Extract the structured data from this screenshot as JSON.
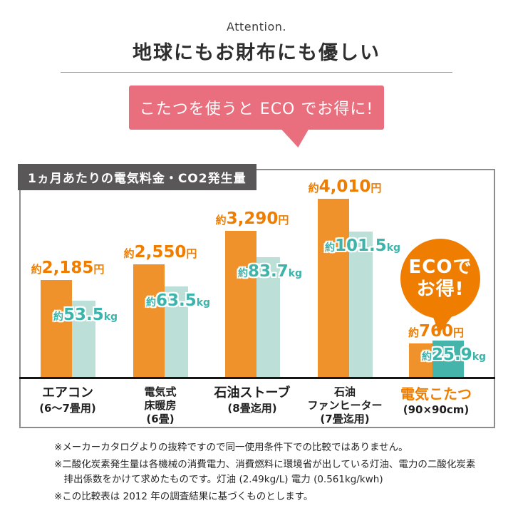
{
  "page": {
    "attention": "Attention.",
    "title": "地球にもお財布にも優しい"
  },
  "bubble": {
    "text": "こたつを使うと ECO でお得に!"
  },
  "chart": {
    "header": "1ヵ月あたりの電気料金・CO2発生量"
  },
  "eco_badge": {
    "line1": "ECOで",
    "line2": "お得!"
  },
  "colors": {
    "price_bar": "#F0922B",
    "co2_bar": "#BCDFD8",
    "co2_bar_highlight": "#45B4AA",
    "price_text": "#EE7D00",
    "co2_text": "#3CB4AA",
    "bubble": "#E96F7E",
    "badge": "#EE7D00",
    "header_box": "#595757",
    "highlight_category": "#EE7D00"
  },
  "chart_data": {
    "type": "bar",
    "title": "1ヵ月あたりの電気料金・CO2発生量",
    "categories": [
      "エアコン(6〜7畳用)",
      "電気式床暖房(6畳)",
      "石油ストーブ(8畳迄用)",
      "石油ファンヒーター(7畳迄用)",
      "電気こたつ(90×90cm)"
    ],
    "series": [
      {
        "name": "電気料金",
        "unit": "円",
        "values": [
          2185,
          2550,
          3290,
          4010,
          760
        ]
      },
      {
        "name": "CO2発生量",
        "unit": "kg",
        "values": [
          53.5,
          63.5,
          83.7,
          101.5,
          25.9
        ]
      }
    ],
    "legend": "none",
    "grid": false,
    "groups": [
      {
        "category_lines": [
          "エアコン",
          "(6〜7畳用)"
        ],
        "price_label": {
          "prefix": "約",
          "num": "2,185",
          "suffix": "円"
        },
        "co2_label": {
          "prefix": "約",
          "num": "53.5",
          "suffix": "kg"
        },
        "highlight": false
      },
      {
        "category_lines": [
          "電気式",
          "床暖房",
          "(6畳)"
        ],
        "price_label": {
          "prefix": "約",
          "num": "2,550",
          "suffix": "円"
        },
        "co2_label": {
          "prefix": "約",
          "num": "63.5",
          "suffix": "kg"
        },
        "highlight": false
      },
      {
        "category_lines": [
          "石油ストーブ",
          "(8畳迄用)"
        ],
        "price_label": {
          "prefix": "約",
          "num": "3,290",
          "suffix": "円"
        },
        "co2_label": {
          "prefix": "約",
          "num": "83.7",
          "suffix": "kg"
        },
        "highlight": false
      },
      {
        "category_lines": [
          "石油",
          "ファンヒーター",
          "(7畳迄用)"
        ],
        "price_label": {
          "prefix": "約",
          "num": "4,010",
          "suffix": "円"
        },
        "co2_label": {
          "prefix": "約",
          "num": "101.5",
          "suffix": "kg"
        },
        "highlight": false
      },
      {
        "category_lines": [
          "電気こたつ",
          "(90×90cm)"
        ],
        "price_label": {
          "prefix": "約",
          "num": "760",
          "suffix": "円"
        },
        "co2_label": {
          "prefix": "約",
          "num": "25.9",
          "suffix": "kg"
        },
        "highlight": true,
        "co2_front": true
      }
    ]
  },
  "footnotes": [
    "※メーカーカタログよりの抜粋ですので同一使用条件下での比較ではありません。",
    "※二酸化炭素発生量は各機械の消費電力、消費燃料に環境省が出している灯油、電力の二酸化炭素排出係数をかけて求めたものです。灯油 (2.49kg/L) 電力 (0.561kg/kwh)",
    "※この比較表は 2012 年の調査結果に基づくものとします。"
  ]
}
